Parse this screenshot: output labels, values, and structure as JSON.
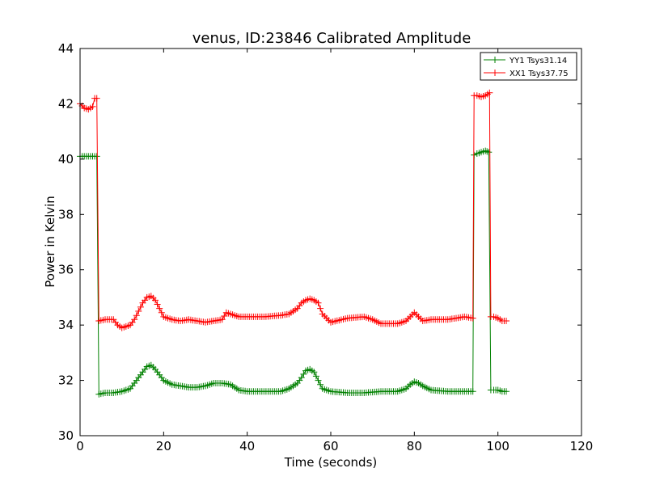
{
  "chart_data": {
    "type": "line",
    "title": "venus, ID:23846 Calibrated Amplitude",
    "xlabel": "Time (seconds)",
    "ylabel": "Power in Kelvin",
    "xlim": [
      0,
      120
    ],
    "ylim": [
      30,
      44
    ],
    "xticks": [
      0,
      20,
      40,
      60,
      80,
      100,
      120
    ],
    "yticks": [
      30,
      32,
      34,
      36,
      38,
      40,
      42,
      44
    ],
    "grid": false,
    "legend_position": "top-right",
    "marker": "+",
    "series": [
      {
        "name": "YY1 Tsys31.14",
        "color": "#008000",
        "x": [
          0,
          2,
          3.5,
          4,
          4.5,
          6,
          8,
          10,
          12,
          13,
          14,
          15,
          16,
          17,
          18,
          19,
          20,
          22,
          24,
          26,
          28,
          30,
          32,
          34,
          36,
          38,
          40,
          44,
          48,
          50,
          52,
          53,
          54,
          55,
          56,
          57,
          58,
          60,
          64,
          68,
          72,
          76,
          78,
          79,
          80,
          81,
          82,
          84,
          88,
          92,
          94,
          94.3,
          95,
          96,
          97,
          97.8,
          98.3,
          99,
          100,
          101,
          102
        ],
        "y": [
          40.1,
          40.1,
          40.1,
          40.1,
          31.5,
          31.55,
          31.55,
          31.6,
          31.7,
          31.9,
          32.1,
          32.3,
          32.5,
          32.55,
          32.4,
          32.2,
          32.0,
          31.85,
          31.8,
          31.75,
          31.75,
          31.8,
          31.9,
          31.9,
          31.85,
          31.65,
          31.6,
          31.6,
          31.6,
          31.7,
          31.9,
          32.1,
          32.35,
          32.4,
          32.3,
          32.0,
          31.7,
          31.6,
          31.55,
          31.55,
          31.6,
          31.6,
          31.7,
          31.85,
          31.95,
          31.9,
          31.8,
          31.65,
          31.6,
          31.6,
          31.6,
          40.15,
          40.2,
          40.25,
          40.3,
          40.25,
          31.65,
          31.65,
          31.65,
          31.6,
          31.6
        ]
      },
      {
        "name": "XX1 Tsys37.75",
        "color": "#ff0000",
        "x": [
          0,
          1,
          2,
          3,
          3.5,
          4,
          4.5,
          6,
          8,
          9,
          10,
          12,
          13,
          14,
          15,
          16,
          17,
          18,
          19,
          20,
          22,
          24,
          26,
          28,
          30,
          32,
          34,
          35,
          36,
          38,
          40,
          44,
          48,
          50,
          52,
          53,
          54,
          55,
          56,
          57,
          58,
          60,
          64,
          68,
          70,
          72,
          76,
          78,
          80,
          81,
          82,
          84,
          88,
          92,
          94,
          94.3,
          95,
          96,
          97,
          98,
          98.3,
          99,
          100,
          101,
          102
        ],
        "y": [
          42.0,
          41.85,
          41.8,
          41.9,
          42.2,
          42.2,
          34.15,
          34.2,
          34.2,
          34.0,
          33.9,
          34.0,
          34.2,
          34.5,
          34.8,
          35.0,
          35.05,
          34.9,
          34.6,
          34.3,
          34.2,
          34.15,
          34.2,
          34.15,
          34.1,
          34.15,
          34.2,
          34.45,
          34.4,
          34.3,
          34.3,
          34.3,
          34.35,
          34.4,
          34.6,
          34.8,
          34.9,
          34.95,
          34.9,
          34.8,
          34.4,
          34.1,
          34.25,
          34.3,
          34.2,
          34.05,
          34.05,
          34.15,
          34.45,
          34.3,
          34.15,
          34.2,
          34.2,
          34.3,
          34.25,
          42.3,
          42.3,
          42.25,
          42.3,
          42.4,
          34.3,
          34.3,
          34.25,
          34.15,
          34.15
        ]
      }
    ]
  }
}
